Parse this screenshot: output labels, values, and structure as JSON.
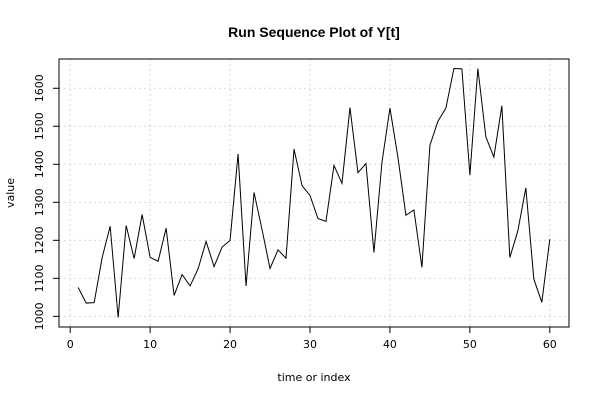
{
  "chart_data": {
    "type": "line",
    "title": "Run Sequence Plot of Y[t]",
    "xlabel": "time or index",
    "ylabel": "value",
    "xlim": [
      -1.4,
      62.4
    ],
    "ylim": [
      972,
      1677
    ],
    "x_ticks": [
      0,
      10,
      20,
      30,
      40,
      50,
      60
    ],
    "y_ticks": [
      1000,
      1100,
      1200,
      1300,
      1400,
      1500,
      1600
    ],
    "grid": true,
    "legend": "none",
    "line_color": "#000000",
    "series": [
      {
        "x": [
          1,
          2,
          3,
          4,
          5,
          6,
          7,
          8,
          9,
          10,
          11,
          12,
          13,
          14,
          15,
          16,
          17,
          18,
          19,
          20,
          21,
          22,
          23,
          24,
          25,
          26,
          27,
          28,
          29,
          30,
          31,
          32,
          33,
          34,
          35,
          36,
          37,
          38,
          39,
          40,
          41,
          42,
          43,
          44,
          45,
          46,
          47,
          48,
          49,
          50,
          51,
          52,
          53,
          54,
          55,
          56,
          57,
          58,
          59,
          60
        ],
        "values": [
          1076,
          1035,
          1036,
          1155,
          1237,
          997,
          1239,
          1152,
          1268,
          1155,
          1145,
          1232,
          1055,
          1110,
          1080,
          1125,
          1197,
          1131,
          1182,
          1200,
          1427,
          1080,
          1326,
          1228,
          1126,
          1175,
          1153,
          1440,
          1344,
          1318,
          1257,
          1250,
          1397,
          1350,
          1549,
          1378,
          1402,
          1168,
          1405,
          1548,
          1418,
          1266,
          1280,
          1129,
          1450,
          1513,
          1548,
          1652,
          1651,
          1372,
          1652,
          1472,
          1419,
          1554,
          1155,
          1225,
          1338,
          1098,
          1037,
          1203
        ]
      }
    ]
  }
}
